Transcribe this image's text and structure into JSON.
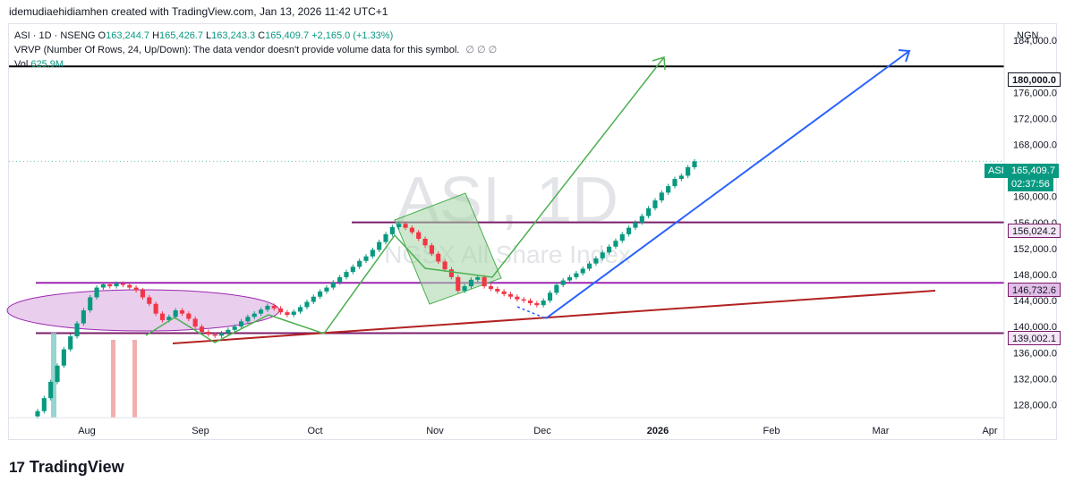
{
  "header": {
    "attribution": "idemudiaehidiamhen created with TradingView.com, Jan 13, 2026 11:42 UTC+1"
  },
  "legend": {
    "symbol": "ASI · 1D · NSENG",
    "open_label": "O",
    "open": "163,244.7",
    "high_label": "H",
    "high": "165,426.7",
    "low_label": "L",
    "low": "163,243.3",
    "close_label": "C",
    "close": "165,409.7",
    "change": "+2,165.0 (+1.33%)",
    "vrvp": "VRVP (Number Of Rows, 24, Up/Down): The data vendor doesn't provide volume data for this symbol.",
    "vrvp_icons": "∅ ∅ ∅",
    "vol_label": "Vol",
    "vol_value": "625.9M"
  },
  "watermark": {
    "ticker": "ASI, 1D",
    "name": "NGSX All Share Index"
  },
  "currency": "NGN",
  "price_tags": {
    "symbol_tag": "ASI",
    "last_price": "165,409.7",
    "countdown": "02:37:56",
    "line_180000": "180,000.0",
    "line_156024": "156,024.2",
    "line_146732": "146,732.6",
    "line_139002": "139,002.1"
  },
  "footer": {
    "brand": "TradingView"
  },
  "colors": {
    "up": "#089981",
    "down": "#f23645",
    "purple": "#7b1c6b",
    "green_line": "#4caf50",
    "blue_line": "#2962ff",
    "red_line": "#b22222"
  },
  "chart_data": {
    "type": "candlestick",
    "y_ticks": [
      128000,
      132000,
      136000,
      140000,
      144000,
      148000,
      152000,
      156000,
      160000,
      164000,
      168000,
      172000,
      176000,
      180000,
      184000
    ],
    "y_tick_labels": [
      "128,000.0",
      "132,000.0",
      "136,000.0",
      "140,000.0",
      "144,000.0",
      "148,000.0",
      "152,000.0",
      "156,000.0",
      "160,000.0",
      "164,000.0",
      "168,000.0",
      "172,000.0",
      "176,000.0",
      "180,000.0",
      "184,000.0"
    ],
    "ylim": [
      126000,
      186500
    ],
    "x_labels": [
      "Aug",
      "Sep",
      "Oct",
      "Nov",
      "Dec",
      "2026",
      "Feb",
      "Mar",
      "Apr"
    ],
    "horizontal_levels": [
      180000.0,
      156024.2,
      146732.6,
      139002.1
    ],
    "closes": [
      127000,
      129000,
      131500,
      134000,
      136500,
      138500,
      140500,
      142500,
      144500,
      146000,
      146500,
      146200,
      146600,
      146400,
      146000,
      145600,
      144500,
      143500,
      142000,
      141000,
      141500,
      142500,
      142000,
      141200,
      140000,
      139200,
      138800,
      138600,
      139000,
      139500,
      140000,
      140800,
      141500,
      142000,
      142600,
      143200,
      142800,
      142200,
      141800,
      142300,
      143000,
      143800,
      144600,
      145400,
      146000,
      146800,
      147600,
      148400,
      149200,
      150100,
      150800,
      151800,
      153000,
      154200,
      155300,
      155800,
      155200,
      154500,
      153500,
      152500,
      151200,
      150000,
      148800,
      147600,
      145500,
      146200,
      147200,
      147600,
      146200,
      145800,
      145400,
      145000,
      144600,
      144200,
      144000,
      143600,
      143300,
      144000,
      145200,
      146400,
      147100,
      147600,
      148200,
      148900,
      149700,
      150500,
      151400,
      152300,
      153200,
      154200,
      155200,
      156000,
      157000,
      158200,
      159400,
      160600,
      161600,
      162700,
      163200,
      164500,
      165409.7
    ]
  }
}
